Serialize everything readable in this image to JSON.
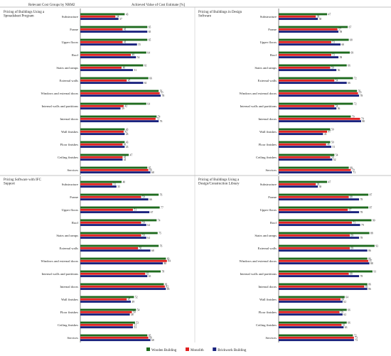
{
  "header": {
    "left_label": "Relevant Cost Groups by NRM2",
    "right_label": "Achieved Value of Cost Estimate [%]"
  },
  "legend": {
    "items": [
      {
        "name": "Wooden Building",
        "color": "#1e6b1e"
      },
      {
        "name": "Monolith",
        "color": "#e02020"
      },
      {
        "name": "Brickwork Building",
        "color": "#1a237e"
      }
    ]
  },
  "chart_data": [
    {
      "type": "bar",
      "title": "Pricing of Buildings Using a Spreadsheet Program",
      "categories": [
        "Substructure",
        "Frame",
        "Upper floors",
        "Roof",
        "Stairs and ramps",
        "External walls",
        "Windows and external doors",
        "Internal walls and partitions",
        "Internal doors",
        "Wall finishes",
        "Floor finishes",
        "Ceiling finishes",
        "Services"
      ],
      "series": [
        {
          "name": "Wooden Building",
          "values": [
            43,
            65,
            65,
            64,
            61,
            66,
            76,
            64,
            74,
            43,
            43,
            47,
            65
          ]
        },
        {
          "name": "Monolith",
          "values": [
            34,
            41,
            41,
            49,
            40,
            45,
            77,
            42,
            73,
            42,
            41,
            41,
            66
          ]
        },
        {
          "name": "Brickwork Building",
          "values": [
            37,
            65,
            55,
            54,
            51,
            61,
            78,
            39,
            76,
            43,
            43,
            41,
            68
          ]
        }
      ],
      "xlim": [
        0,
        100
      ]
    },
    {
      "type": "bar",
      "title": "Pricing of Buildings in Design Software",
      "categories": [
        "Substructure",
        "Frame",
        "Upper floors",
        "Roof",
        "Stairs and ramps",
        "External walls",
        "Windows and external doors",
        "Internal walls and partitions",
        "Internal doors",
        "Wall finishes",
        "Floor finishes",
        "Ceiling finishes",
        "Services"
      ],
      "series": [
        {
          "name": "Wooden Building",
          "values": [
            47,
            67,
            68,
            69,
            66,
            72,
            76,
            72,
            70,
            50,
            50,
            54,
            68
          ]
        },
        {
          "name": "Monolith",
          "values": [
            36,
            57,
            51,
            51,
            50,
            54,
            77,
            54,
            79,
            47,
            46,
            50,
            70
          ]
        },
        {
          "name": "Brickwork Building",
          "values": [
            38,
            58,
            60,
            58,
            56,
            66,
            78,
            56,
            80,
            43,
            51,
            52,
            71
          ]
        }
      ],
      "xlim": [
        0,
        100
      ]
    },
    {
      "type": "bar",
      "title": "Pricing Software with IFC Support",
      "categories": [
        "Substructure",
        "Frame",
        "Upper floors",
        "Roof",
        "Stairs and ramps",
        "External walls",
        "Windows and external doors",
        "Internal walls and partitions",
        "Internal doors",
        "Wall finishes",
        "Floor finishes",
        "Ceiling finishes",
        "Services"
      ],
      "series": [
        {
          "name": "Wooden Building",
          "values": [
            40,
            76,
            77,
            74,
            75,
            76,
            83,
            78,
            81,
            52,
            54,
            53,
            65
          ]
        },
        {
          "name": "Monolith",
          "values": [
            31,
            59,
            51,
            59,
            59,
            56,
            84,
            63,
            82,
            45,
            50,
            51,
            66
          ]
        },
        {
          "name": "Brickwork Building",
          "values": [
            35,
            66,
            67,
            64,
            64,
            68,
            80,
            65,
            83,
            49,
            48,
            51,
            68
          ]
        }
      ],
      "xlim": [
        0,
        100
      ]
    },
    {
      "type": "bar",
      "title": "Pricing of Buildings Using a Design/Construction Library",
      "categories": [
        "Substructure",
        "Frame",
        "Upper floors",
        "Roof",
        "Stairs and ramps",
        "External walls",
        "Windows and external doors",
        "Internal walls and partitions",
        "Internal doors",
        "Wall finishes",
        "Floor finishes",
        "Ceiling finishes",
        "Services"
      ],
      "series": [
        {
          "name": "Wooden Building",
          "values": [
            47,
            87,
            87,
            90,
            88,
            93,
            86,
            91,
            86,
            64,
            66,
            66,
            72
          ]
        },
        {
          "name": "Monolith",
          "values": [
            36,
            68,
            67,
            71,
            69,
            69,
            87,
            68,
            83,
            60,
            59,
            61,
            73
          ]
        },
        {
          "name": "Brickwork Building",
          "values": [
            38,
            78,
            78,
            79,
            78,
            86,
            88,
            78,
            86,
            62,
            62,
            63,
            73
          ]
        }
      ],
      "xlim": [
        0,
        100
      ]
    }
  ]
}
